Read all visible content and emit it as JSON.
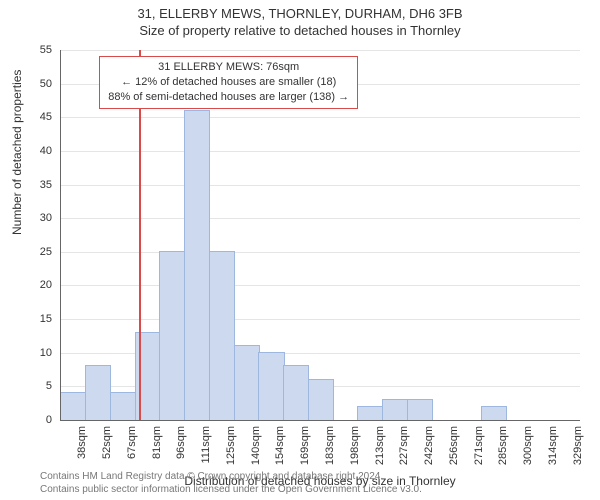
{
  "title": {
    "line1": "31, ELLERBY MEWS, THORNLEY, DURHAM, DH6 3FB",
    "line2": "Size of property relative to detached houses in Thornley",
    "fontsize": 13,
    "color": "#333333"
  },
  "chart": {
    "type": "histogram",
    "background_color": "#ffffff",
    "grid_color": "#e5e5e5",
    "axis_color": "#666666",
    "bar_fill": "#cdd9ee",
    "bar_stroke": "#9db7df",
    "bar_width_ratio": 0.98,
    "marker_color": "#d94a4a",
    "callout_border": "#d94a4a",
    "callout_bg": "#ffffff",
    "label_fontsize": 11,
    "axis_title_fontsize": 12,
    "y": {
      "label": "Number of detached properties",
      "min": 0,
      "max": 55,
      "step": 5
    },
    "x": {
      "label": "Distribution of detached houses by size in Thornley",
      "categories": [
        "38sqm",
        "52sqm",
        "67sqm",
        "81sqm",
        "96sqm",
        "111sqm",
        "125sqm",
        "140sqm",
        "154sqm",
        "169sqm",
        "183sqm",
        "198sqm",
        "213sqm",
        "227sqm",
        "242sqm",
        "256sqm",
        "271sqm",
        "285sqm",
        "300sqm",
        "314sqm",
        "329sqm"
      ]
    },
    "values": [
      4,
      8,
      4,
      13,
      25,
      46,
      25,
      11,
      10,
      8,
      6,
      0,
      2,
      3,
      3,
      0,
      0,
      2,
      0,
      0,
      0
    ],
    "marker": {
      "categorical_position": 2.7,
      "lines": [
        "31 ELLERBY MEWS: 76sqm",
        "← 12% of detached houses are smaller (18)",
        "88% of semi-detached houses are larger (138) →"
      ]
    }
  },
  "footer": {
    "line1": "Contains HM Land Registry data © Crown copyright and database right 2024.",
    "line2": "Contains public sector information licensed under the Open Government Licence v3.0.",
    "color": "#777777",
    "fontsize": 10
  }
}
